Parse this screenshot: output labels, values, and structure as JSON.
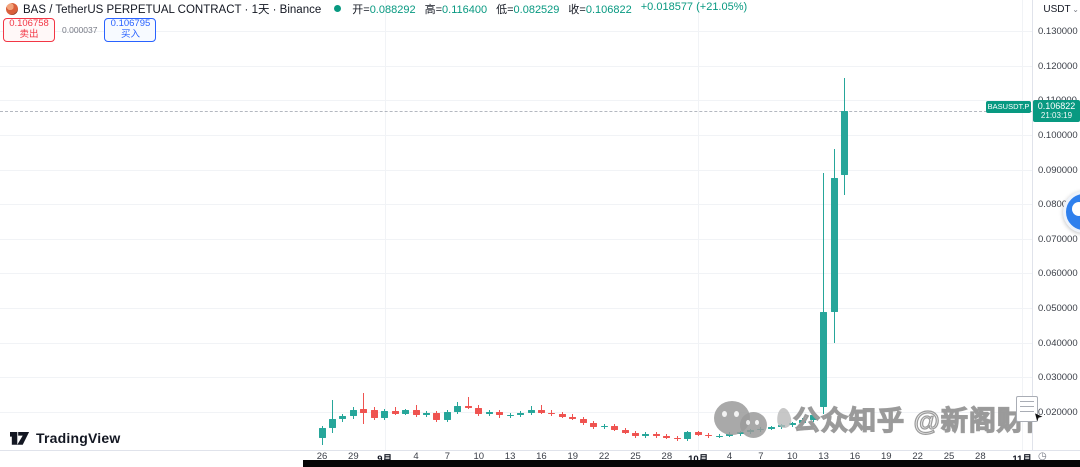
{
  "header": {
    "symbol_title": "BAS / TetherUS PERPETUAL CONTRACT · 1天 · Binance",
    "ohlc": {
      "open_label": "开=",
      "open_value": "0.088292",
      "high_label": "高=",
      "high_value": "0.116400",
      "low_label": "低=",
      "low_value": "0.082529",
      "close_label": "收=",
      "close_value": "0.106822",
      "change_text": "+0.018577 (+21.05%)"
    }
  },
  "trade_panel": {
    "sell_price": "0.106758",
    "sell_label": "卖出",
    "spread": "0.000037",
    "buy_price": "0.106795",
    "buy_label": "买入"
  },
  "price_axis": {
    "currency": "USDT",
    "labels": [
      "0.130000",
      "0.120000",
      "0.110000",
      "0.100000",
      "0.090000",
      "0.080000",
      "0.070000",
      "0.060000",
      "0.050000",
      "0.040000",
      "0.030000",
      "0.020000"
    ]
  },
  "price_tag": {
    "symbol_label": "BASUSDT.P",
    "price": "0.106822",
    "countdown": "21:03:19"
  },
  "time_axis": {
    "labels": [
      {
        "text": "26",
        "day": 0
      },
      {
        "text": "29",
        "day": 3
      },
      {
        "text": "9月",
        "day": 6,
        "month": true
      },
      {
        "text": "4",
        "day": 9
      },
      {
        "text": "7",
        "day": 12
      },
      {
        "text": "10",
        "day": 15
      },
      {
        "text": "13",
        "day": 18
      },
      {
        "text": "16",
        "day": 21
      },
      {
        "text": "19",
        "day": 24
      },
      {
        "text": "22",
        "day": 27
      },
      {
        "text": "25",
        "day": 30
      },
      {
        "text": "28",
        "day": 33
      },
      {
        "text": "10月",
        "day": 36,
        "month": true
      },
      {
        "text": "4",
        "day": 39
      },
      {
        "text": "7",
        "day": 42
      },
      {
        "text": "10",
        "day": 45
      },
      {
        "text": "13",
        "day": 48
      },
      {
        "text": "16",
        "day": 51
      },
      {
        "text": "19",
        "day": 54
      },
      {
        "text": "22",
        "day": 57
      },
      {
        "text": "25",
        "day": 60
      },
      {
        "text": "28",
        "day": 63
      },
      {
        "text": "11月",
        "day": 67,
        "month": true
      }
    ]
  },
  "watermark": {
    "text": "公众知乎 @新阁财富"
  },
  "footer": {
    "brand": "TradingView"
  },
  "colors": {
    "up": "#26a69a",
    "down": "#ef5350",
    "accent_green": "#089981",
    "sell_red": "#f23645",
    "buy_blue": "#2962ff"
  },
  "chart_data": {
    "type": "candlestick",
    "title": "BAS / TetherUS PERPETUAL CONTRACT",
    "symbol": "BASUSDT.P",
    "interval": "1天",
    "exchange": "Binance",
    "legend_position": "none",
    "grid": "faint",
    "y_axis": {
      "unit": "USDT",
      "min": 0.02,
      "max": 0.13,
      "tick_step": 0.01,
      "side": "right"
    },
    "x_axis": {
      "first_candle": "08-26",
      "last_candle": "10-15",
      "axis_extends_to": "11-01",
      "tick_every_days": 3
    },
    "current_price": 0.106822,
    "last_bar": {
      "open": 0.088292,
      "high": 0.1164,
      "low": 0.082529,
      "close": 0.106822,
      "change": "+0.018577",
      "change_pct": "+21.05%"
    },
    "columns": [
      "date",
      "open",
      "high",
      "low",
      "close"
    ],
    "candles": [
      [
        "08-26",
        0.0125,
        0.016,
        0.0105,
        0.0155
      ],
      [
        "08-27",
        0.0155,
        0.0235,
        0.014,
        0.018
      ],
      [
        "08-28",
        0.018,
        0.0195,
        0.0172,
        0.0188
      ],
      [
        "08-29",
        0.0188,
        0.0215,
        0.018,
        0.0205
      ],
      [
        "08-30",
        0.0208,
        0.0255,
        0.0165,
        0.0198
      ],
      [
        "08-31",
        0.0205,
        0.0215,
        0.0178,
        0.0182
      ],
      [
        "09-01",
        0.0182,
        0.0208,
        0.0178,
        0.0202
      ],
      [
        "09-02",
        0.0202,
        0.0215,
        0.019,
        0.0195
      ],
      [
        "09-03",
        0.0195,
        0.021,
        0.019,
        0.0205
      ],
      [
        "09-04",
        0.0205,
        0.022,
        0.0185,
        0.0192
      ],
      [
        "09-05",
        0.0192,
        0.0202,
        0.0185,
        0.0196
      ],
      [
        "09-06",
        0.0196,
        0.0202,
        0.017,
        0.0176
      ],
      [
        "09-07",
        0.0176,
        0.0205,
        0.0172,
        0.02
      ],
      [
        "09-08",
        0.02,
        0.0228,
        0.0195,
        0.0216
      ],
      [
        "09-09",
        0.0216,
        0.0242,
        0.0208,
        0.0212
      ],
      [
        "09-10",
        0.0212,
        0.022,
        0.0188,
        0.0194
      ],
      [
        "09-11",
        0.0194,
        0.0206,
        0.0188,
        0.02
      ],
      [
        "09-12",
        0.02,
        0.0206,
        0.0184,
        0.019
      ],
      [
        "09-13",
        0.019,
        0.0198,
        0.0184,
        0.0192
      ],
      [
        "09-14",
        0.0192,
        0.0202,
        0.0186,
        0.0196
      ],
      [
        "09-15",
        0.0196,
        0.0218,
        0.019,
        0.0206
      ],
      [
        "09-16",
        0.0206,
        0.022,
        0.0194,
        0.0198
      ],
      [
        "09-17",
        0.0198,
        0.0205,
        0.0188,
        0.0193
      ],
      [
        "09-18",
        0.0193,
        0.0199,
        0.0183,
        0.0187
      ],
      [
        "09-19",
        0.0187,
        0.0193,
        0.0176,
        0.018
      ],
      [
        "09-20",
        0.018,
        0.0186,
        0.0163,
        0.0168
      ],
      [
        "09-21",
        0.0168,
        0.0174,
        0.0152,
        0.0157
      ],
      [
        "09-22",
        0.0157,
        0.0165,
        0.015,
        0.016
      ],
      [
        "09-23",
        0.016,
        0.0164,
        0.0145,
        0.0149
      ],
      [
        "09-24",
        0.0149,
        0.0153,
        0.0136,
        0.014
      ],
      [
        "09-25",
        0.014,
        0.0146,
        0.0126,
        0.0131
      ],
      [
        "09-26",
        0.0131,
        0.0142,
        0.0126,
        0.0137
      ],
      [
        "09-27",
        0.0137,
        0.0141,
        0.0126,
        0.013
      ],
      [
        "09-28",
        0.013,
        0.0136,
        0.0121,
        0.0126
      ],
      [
        "09-29",
        0.0126,
        0.0131,
        0.0116,
        0.0121
      ],
      [
        "09-30",
        0.0121,
        0.0146,
        0.0116,
        0.0141
      ],
      [
        "10-01",
        0.0141,
        0.0145,
        0.013,
        0.0135
      ],
      [
        "10-02",
        0.0135,
        0.014,
        0.0126,
        0.013
      ],
      [
        "10-03",
        0.013,
        0.0136,
        0.0125,
        0.0132
      ],
      [
        "10-04",
        0.0132,
        0.0141,
        0.0127,
        0.0137
      ],
      [
        "10-05",
        0.0137,
        0.0146,
        0.0132,
        0.0142
      ],
      [
        "10-06",
        0.0142,
        0.0151,
        0.0137,
        0.0147
      ],
      [
        "10-07",
        0.0147,
        0.0156,
        0.0142,
        0.0152
      ],
      [
        "10-08",
        0.0152,
        0.0161,
        0.0147,
        0.0157
      ],
      [
        "10-09",
        0.0157,
        0.0166,
        0.0152,
        0.0162
      ],
      [
        "10-10",
        0.0162,
        0.0172,
        0.0157,
        0.0168
      ],
      [
        "10-11",
        0.0168,
        0.0182,
        0.0163,
        0.0177
      ],
      [
        "10-12",
        0.0177,
        0.0196,
        0.017,
        0.019
      ],
      [
        "10-13",
        0.0214,
        0.089,
        0.0195,
        0.049
      ],
      [
        "10-14",
        0.049,
        0.096,
        0.04,
        0.0875
      ],
      [
        "10-15",
        0.088292,
        0.1164,
        0.082529,
        0.106822
      ]
    ]
  }
}
